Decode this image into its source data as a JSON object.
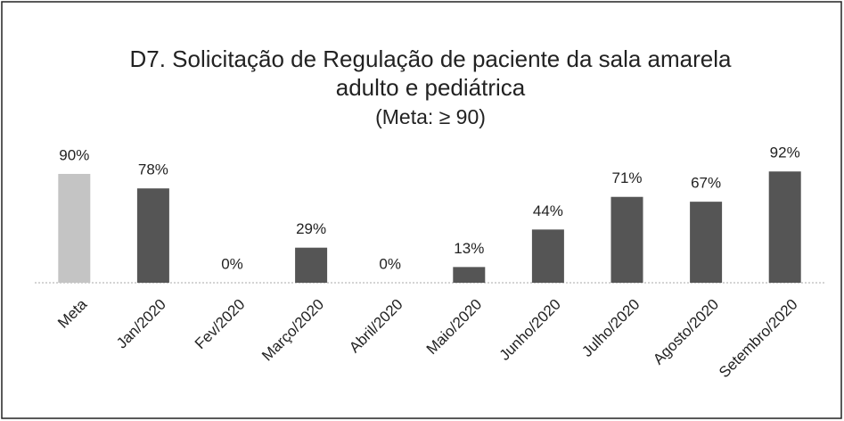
{
  "chart_data": {
    "type": "bar",
    "title": [
      "D7. Solicitação de Regulação de paciente da sala amarela",
      "adulto e pediátrica"
    ],
    "subtitle": "(Meta: ≥ 90)",
    "categories": [
      "Meta",
      "Jan/2020",
      "Fev/2020",
      "Março/2020",
      "Abril/2020",
      "Maio/2020",
      "Junho/2020",
      "Julho/2020",
      "Agosto/2020",
      "Setembro/2020"
    ],
    "values": [
      90,
      78,
      0,
      29,
      0,
      13,
      44,
      71,
      67,
      92
    ],
    "value_labels": [
      "90%",
      "78%",
      "0%",
      "29%",
      "0%",
      "13%",
      "44%",
      "71%",
      "67%",
      "92%"
    ],
    "colors": [
      "#c4c4c4",
      "#555555",
      "#555555",
      "#555555",
      "#555555",
      "#555555",
      "#555555",
      "#555555",
      "#555555",
      "#555555"
    ]
  }
}
